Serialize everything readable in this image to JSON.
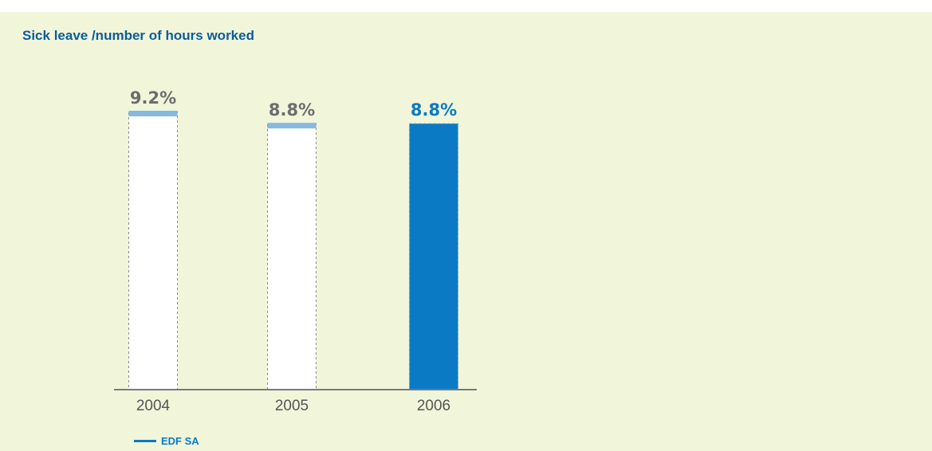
{
  "colors": {
    "panel_bg": "#f1f5da",
    "accent": "#0a7ac4",
    "light_cap": "#86b9e2",
    "past_label": "#6d6d6d",
    "axis": "#7a7a7a"
  },
  "chart_data": {
    "type": "bar",
    "title": "Sick leave /number of hours worked",
    "xlabel": "",
    "ylabel": "",
    "categories": [
      "2004",
      "2005",
      "2006"
    ],
    "series": [
      {
        "name": "EDF SA",
        "values": [
          9.2,
          8.8,
          8.8
        ],
        "labels": [
          "9.2%",
          "8.8%",
          "8.8%"
        ],
        "highlight": [
          false,
          false,
          true
        ]
      }
    ],
    "ylim": [
      0,
      9.2
    ],
    "grid": false,
    "legend": "bottom-left"
  }
}
